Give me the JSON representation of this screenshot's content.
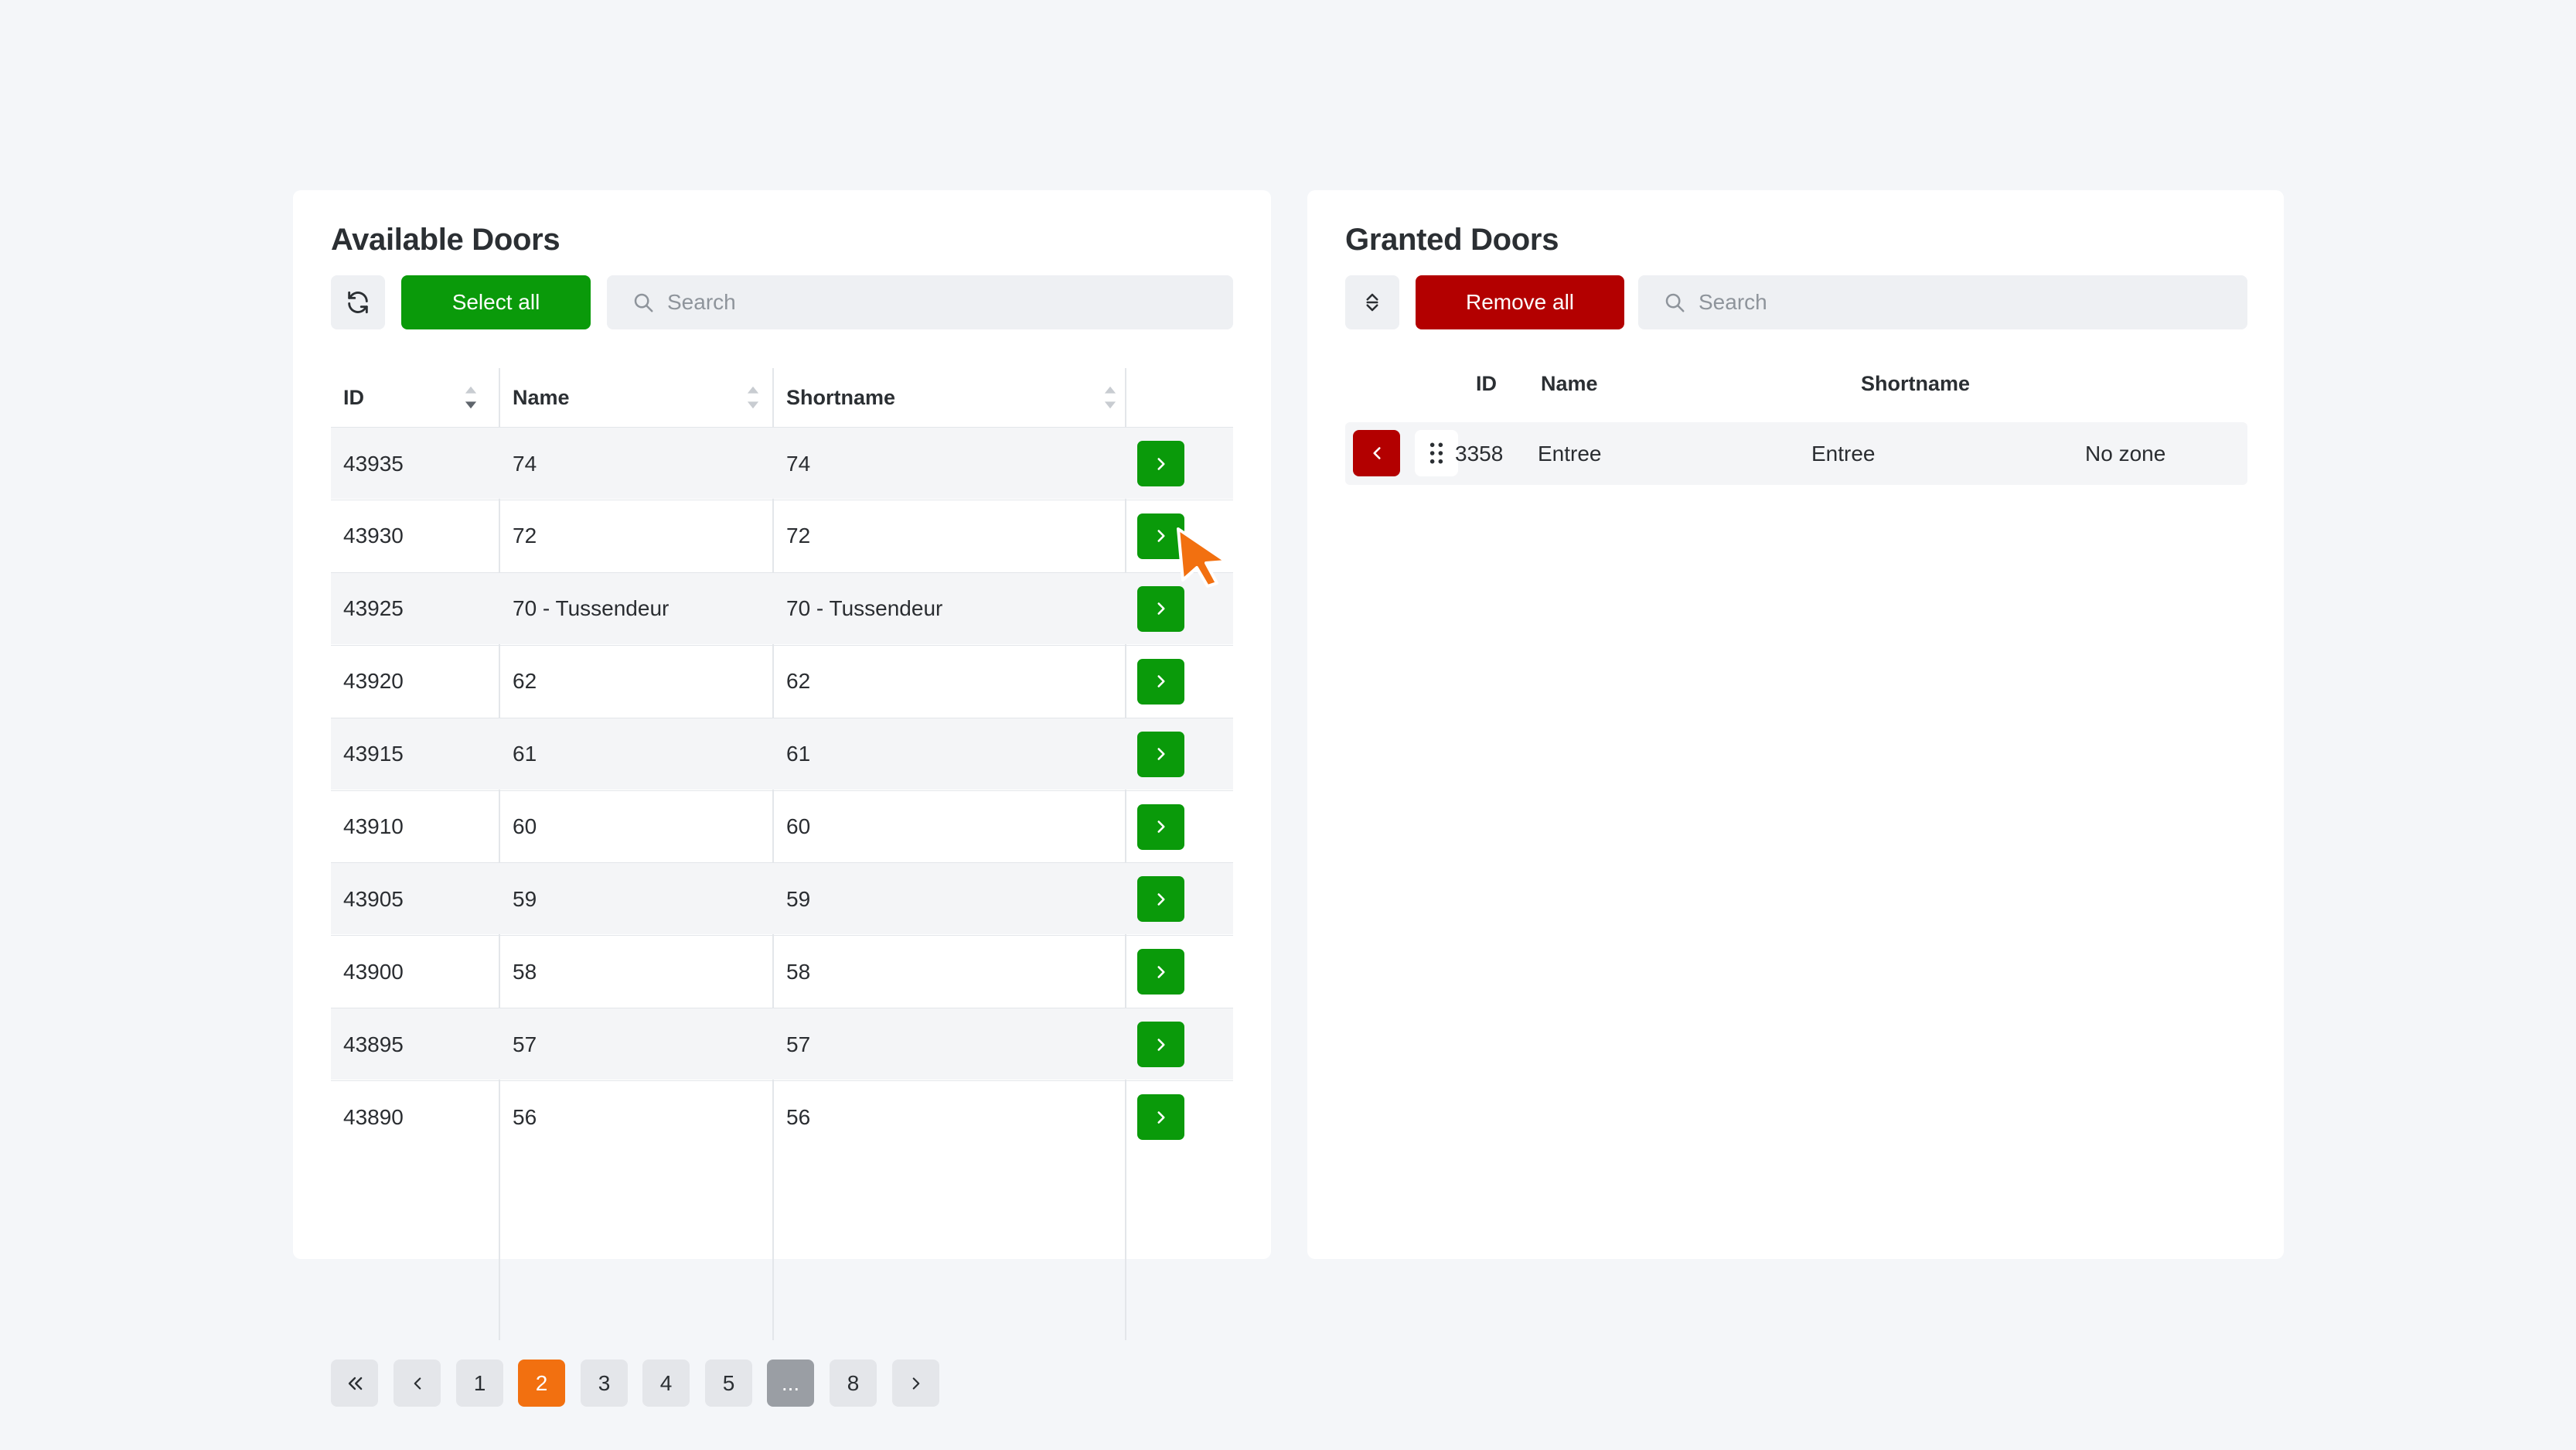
{
  "available": {
    "title": "Available Doors",
    "select_all_label": "Select all",
    "search_placeholder": "Search",
    "columns": [
      "ID",
      "Name",
      "Shortname"
    ],
    "rows": [
      {
        "id": "43935",
        "name": "74",
        "shortname": "74"
      },
      {
        "id": "43930",
        "name": "72",
        "shortname": "72"
      },
      {
        "id": "43925",
        "name": "70 - Tussendeur",
        "shortname": "70 - Tussendeur"
      },
      {
        "id": "43920",
        "name": "62",
        "shortname": "62"
      },
      {
        "id": "43915",
        "name": "61",
        "shortname": "61"
      },
      {
        "id": "43910",
        "name": "60",
        "shortname": "60"
      },
      {
        "id": "43905",
        "name": "59",
        "shortname": "59"
      },
      {
        "id": "43900",
        "name": "58",
        "shortname": "58"
      },
      {
        "id": "43895",
        "name": "57",
        "shortname": "57"
      },
      {
        "id": "43890",
        "name": "56",
        "shortname": "56"
      }
    ],
    "pagination": {
      "pages": [
        "1",
        "2",
        "3",
        "4",
        "5",
        "...",
        "8"
      ],
      "active": "2"
    }
  },
  "granted": {
    "title": "Granted Doors",
    "remove_all_label": "Remove all",
    "search_placeholder": "Search",
    "columns": [
      "ID",
      "Name",
      "Shortname"
    ],
    "rows": [
      {
        "id": "3358",
        "name": "Entree",
        "shortname": "Entree",
        "zone": "No zone"
      }
    ]
  },
  "colors": {
    "accent_green": "#0a9a0a",
    "accent_red": "#b30000",
    "pagination_active": "#f27010",
    "cursor": "#f27010"
  },
  "icons": [
    "refresh-icon",
    "search-icon",
    "sort-icon",
    "chevron-right-icon",
    "chevron-left-icon",
    "double-chevron-left-icon",
    "drag-handle-icon",
    "cursor-icon"
  ]
}
